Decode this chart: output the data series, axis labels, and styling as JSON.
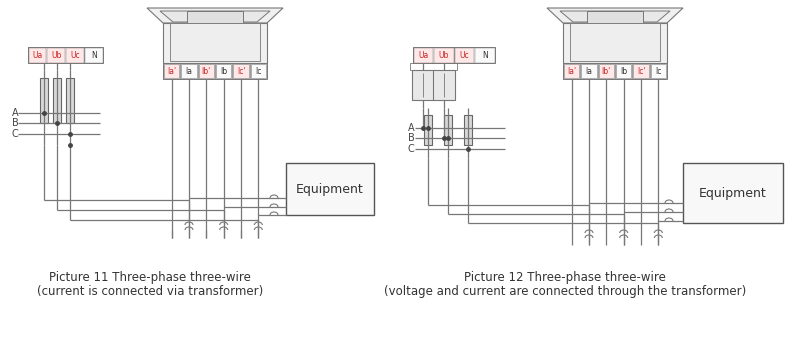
{
  "bg_color": "#ffffff",
  "lc": "#777777",
  "caption1_line1": "Picture 11 Three-phase three-wire",
  "caption1_line2": "(current is connected via transformer)",
  "caption2_line1": "Picture 12 Three-phase three-wire",
  "caption2_line2": "(voltage and current are connected through the transformer)",
  "ct_labels": [
    "Ia'",
    "Ia",
    "Ib'",
    "Ib",
    "Ic'",
    "Ic"
  ],
  "v_labels": [
    "Ua",
    "Ub",
    "Uc",
    "N"
  ]
}
